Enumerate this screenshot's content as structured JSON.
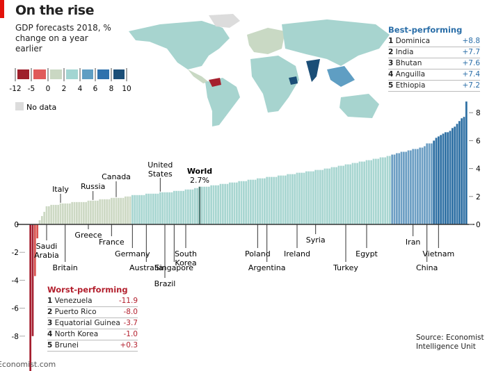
{
  "header": {
    "title": "On the rise",
    "subtitle": "GDP forecasts 2018, % change on a year earlier"
  },
  "legend": {
    "ticks": [
      "-12",
      "-5",
      "0",
      "2",
      "4",
      "6",
      "8",
      "10"
    ],
    "colors": [
      "#9e1f2c",
      "#e05a5a",
      "#cad8c3",
      "#a2d5d2",
      "#5f9ec3",
      "#2f72ad",
      "#1b4e77"
    ],
    "no_data_label": "No data",
    "no_data_color": "#dcdcdc"
  },
  "best": {
    "title": "Best-performing",
    "rows": [
      {
        "rank": "1",
        "country": "Dominica",
        "value": "+8.8"
      },
      {
        "rank": "2",
        "country": "India",
        "value": "+7.7"
      },
      {
        "rank": "3",
        "country": "Bhutan",
        "value": "+7.6"
      },
      {
        "rank": "4",
        "country": "Anguilla",
        "value": "+7.4"
      },
      {
        "rank": "5",
        "country": "Ethiopia",
        "value": "+7.2"
      }
    ]
  },
  "worst": {
    "title": "Worst-performing",
    "rows": [
      {
        "rank": "1",
        "country": "Venezuela",
        "value": "-11.9"
      },
      {
        "rank": "2",
        "country": "Puerto Rico",
        "value": "-8.0"
      },
      {
        "rank": "3",
        "country": "Equatorial Guinea",
        "value": "-3.7"
      },
      {
        "rank": "4",
        "country": "North Korea",
        "value": "-1.0"
      },
      {
        "rank": "5",
        "country": "Brunei",
        "value": "+0.3"
      }
    ]
  },
  "source": "Source: Economist Intelligence Unit",
  "footer": "Economist.com",
  "chart_data": {
    "type": "bar",
    "title": "On the rise",
    "ylim": [
      -12,
      9
    ],
    "right_axis_ticks": [
      "0",
      "2",
      "4",
      "6",
      "8"
    ],
    "left_axis_ticks": [
      "0",
      "-2",
      "-4",
      "-6",
      "-8"
    ],
    "grid": false,
    "values": [
      -11.9,
      -8.0,
      -3.7,
      -1.0,
      0.3,
      0.6,
      0.9,
      1.3,
      1.3,
      1.4,
      1.4,
      1.4,
      1.4,
      1.5,
      1.5,
      1.5,
      1.5,
      1.5,
      1.6,
      1.6,
      1.6,
      1.6,
      1.6,
      1.6,
      1.6,
      1.7,
      1.7,
      1.7,
      1.7,
      1.7,
      1.8,
      1.8,
      1.8,
      1.8,
      1.8,
      1.9,
      1.9,
      1.9,
      1.9,
      1.9,
      1.9,
      2.0,
      2.0,
      2.0,
      2.1,
      2.1,
      2.1,
      2.1,
      2.1,
      2.1,
      2.2,
      2.2,
      2.2,
      2.2,
      2.2,
      2.2,
      2.3,
      2.3,
      2.3,
      2.3,
      2.3,
      2.3,
      2.4,
      2.4,
      2.4,
      2.4,
      2.4,
      2.5,
      2.5,
      2.5,
      2.5,
      2.6,
      2.6,
      2.7,
      2.7,
      2.7,
      2.7,
      2.7,
      2.8,
      2.8,
      2.8,
      2.8,
      2.9,
      2.9,
      2.9,
      2.9,
      3.0,
      3.0,
      3.0,
      3.0,
      3.1,
      3.1,
      3.1,
      3.1,
      3.2,
      3.2,
      3.2,
      3.2,
      3.3,
      3.3,
      3.3,
      3.3,
      3.4,
      3.4,
      3.4,
      3.4,
      3.4,
      3.5,
      3.5,
      3.5,
      3.5,
      3.6,
      3.6,
      3.6,
      3.6,
      3.7,
      3.7,
      3.7,
      3.7,
      3.8,
      3.8,
      3.8,
      3.8,
      3.9,
      3.9,
      3.9,
      3.9,
      4.0,
      4.0,
      4.0,
      4.1,
      4.1,
      4.1,
      4.2,
      4.2,
      4.2,
      4.3,
      4.3,
      4.3,
      4.4,
      4.4,
      4.4,
      4.5,
      4.5,
      4.5,
      4.6,
      4.6,
      4.6,
      4.7,
      4.7,
      4.7,
      4.8,
      4.8,
      4.8,
      4.9,
      4.9,
      5.0,
      5.0,
      5.1,
      5.1,
      5.2,
      5.2,
      5.2,
      5.3,
      5.3,
      5.4,
      5.4,
      5.4,
      5.5,
      5.5,
      5.6,
      5.8,
      5.8,
      5.8,
      6.0,
      6.2,
      6.3,
      6.4,
      6.5,
      6.6,
      6.6,
      6.7,
      6.9,
      7.0,
      7.2,
      7.4,
      7.6,
      7.7,
      8.8
    ],
    "highlight": {
      "label": "World",
      "value_label": "2.7%",
      "value": 2.7,
      "color": "#4f7f78"
    },
    "annotations": [
      {
        "label": "Saudi Arabia",
        "value": 1.3
      },
      {
        "label": "Italy",
        "value": 1.5
      },
      {
        "label": "Britain",
        "value": 1.5
      },
      {
        "label": "Greece",
        "value": 1.7
      },
      {
        "label": "Russia",
        "value": 1.7
      },
      {
        "label": "France",
        "value": 1.9
      },
      {
        "label": "Canada",
        "value": 1.9
      },
      {
        "label": "Germany",
        "value": 2.1
      },
      {
        "label": "Australia",
        "value": 2.2
      },
      {
        "label": "United States",
        "value": 2.3
      },
      {
        "label": "Brazil",
        "value": 2.3
      },
      {
        "label": "Singapore",
        "value": 2.4
      },
      {
        "label": "South Korea",
        "value": 2.5
      },
      {
        "label": "Poland",
        "value": 3.3
      },
      {
        "label": "Argentina",
        "value": 3.4
      },
      {
        "label": "Ireland",
        "value": 3.7
      },
      {
        "label": "Syria",
        "value": 3.9
      },
      {
        "label": "Turkey",
        "value": 4.3
      },
      {
        "label": "Egypt",
        "value": 4.6
      },
      {
        "label": "Iran",
        "value": 5.4
      },
      {
        "label": "China",
        "value": 5.8
      },
      {
        "label": "Vietnam",
        "value": 6.3
      }
    ]
  }
}
